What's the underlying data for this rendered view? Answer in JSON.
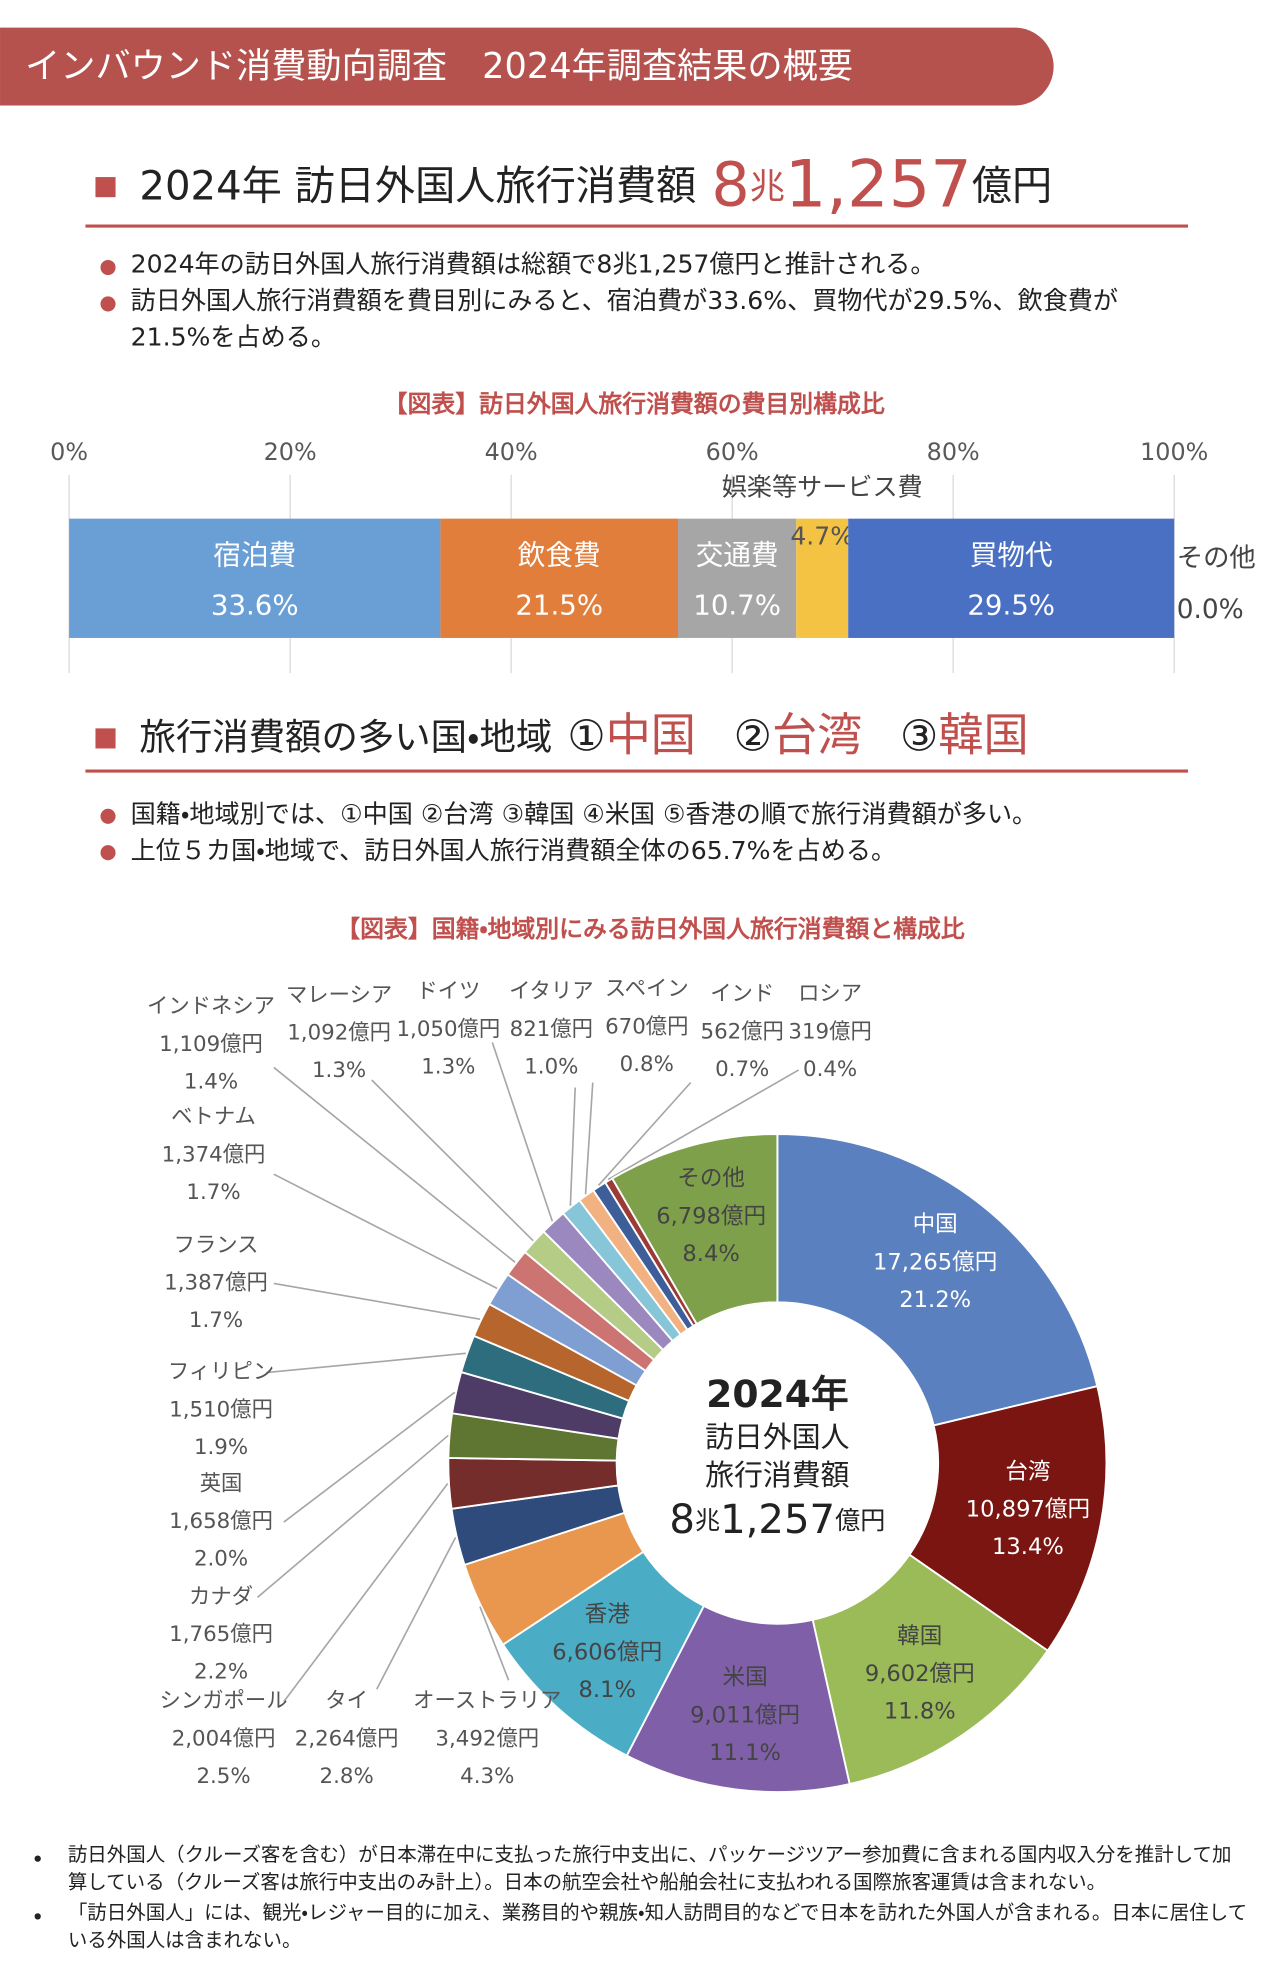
{
  "header": {
    "title": "インバウンド消費動向調査　2024年調査結果の概要"
  },
  "section1": {
    "heading": {
      "text": "2024年 訪日外国人旅行消費額",
      "amount1": "8",
      "unit1": "兆",
      "amount2": "1,257",
      "unit2": "億円"
    },
    "bullets": [
      "2024年の訪日外国人旅行消費額は総額で8兆1,257億円と推計される。",
      "訪日外国人旅行消費額を費目別にみると、宿泊費が33.6%、買物代が29.5%、飲食費が21.5%を占める。"
    ]
  },
  "section2": {
    "heading": {
      "text": "旅行消費額の多い国・地域",
      "ranks": [
        {
          "mark": "①",
          "name": "中国"
        },
        {
          "mark": "②",
          "name": "台湾"
        },
        {
          "mark": "③",
          "name": "韓国"
        }
      ]
    },
    "bullets": [
      "国籍・地域別では、①中国 ②台湾 ③韓国 ④米国 ⑤香港の順で旅行消費額が多い。",
      "上位５カ国・地域で、訪日外国人旅行消費額全体の65.7%を占める。"
    ]
  },
  "chart_data": [
    {
      "type": "bar",
      "orientation": "horizontal",
      "stacked": true,
      "title": "【図表】訪日外国人旅行消費額の費目別構成比",
      "xlim": [
        0,
        100
      ],
      "xticks": [
        {
          "value": 0,
          "label": "0%"
        },
        {
          "value": 20,
          "label": "20%"
        },
        {
          "value": 40,
          "label": "40%"
        },
        {
          "value": 60,
          "label": "60%"
        },
        {
          "value": 80,
          "label": "80%"
        },
        {
          "value": 100,
          "label": "100%"
        }
      ],
      "grid": true,
      "series": [
        {
          "name": "宿泊費",
          "color": "#6a9fd6",
          "values": [
            33.6
          ],
          "value_labels": [
            "33.6%"
          ]
        },
        {
          "name": "飲食費",
          "color": "#e27e3c",
          "values": [
            21.5
          ],
          "value_labels": [
            "21.5%"
          ]
        },
        {
          "name": "交通費",
          "color": "#a6a6a6",
          "values": [
            10.7
          ],
          "value_labels": [
            "10.7%"
          ]
        },
        {
          "name": "娯楽等サービス費",
          "color": "#f5c343",
          "values": [
            4.7
          ],
          "value_labels": [
            "4.7%"
          ]
        },
        {
          "name": "買物代",
          "color": "#4a70c4",
          "values": [
            29.5
          ],
          "value_labels": [
            "29.5%"
          ]
        },
        {
          "name": "その他",
          "color": "#7ea04a",
          "values": [
            0.0
          ],
          "value_labels": [
            "0.0%"
          ]
        }
      ]
    },
    {
      "type": "pie",
      "donut": true,
      "title": "【図表】国籍・地域別にみる訪日外国人旅行消費額と構成比",
      "center": {
        "title": "2024年",
        "lines": [
          "訪日外国人",
          "旅行消費額"
        ],
        "amount1": "8",
        "unit1": "兆",
        "amount2": "1,257",
        "unit2": "億円"
      },
      "categories": [
        "中国",
        "台湾",
        "韓国",
        "米国",
        "香港",
        "オーストラリア",
        "タイ",
        "シンガポール",
        "カナダ",
        "英国",
        "フィリピン",
        "フランス",
        "ベトナム",
        "インドネシア",
        "マレーシア",
        "ドイツ",
        "イタリア",
        "スペイン",
        "インド",
        "ロシア",
        "その他"
      ],
      "values": [
        17265,
        10897,
        9602,
        9011,
        6606,
        3492,
        2264,
        2004,
        1765,
        1658,
        1510,
        1387,
        1374,
        1109,
        1092,
        1050,
        821,
        670,
        562,
        319,
        6798
      ],
      "value_labels": [
        "17,265億円",
        "10,897億円",
        "9,602億円",
        "9,011億円",
        "6,606億円",
        "3,492億円",
        "2,264億円",
        "2,004億円",
        "1,765億円",
        "1,658億円",
        "1,510億円",
        "1,387億円",
        "1,374億円",
        "1,109億円",
        "1,092億円",
        "1,050億円",
        "821億円",
        "670億円",
        "562億円",
        "319億円",
        "6,798億円"
      ],
      "percents": [
        21.2,
        13.4,
        11.8,
        11.1,
        8.1,
        4.3,
        2.8,
        2.5,
        2.2,
        2.0,
        1.9,
        1.7,
        1.7,
        1.4,
        1.3,
        1.3,
        1.0,
        0.8,
        0.7,
        0.4,
        8.4
      ],
      "percent_labels": [
        "21.2%",
        "13.4%",
        "11.8%",
        "11.1%",
        "8.1%",
        "4.3%",
        "2.8%",
        "2.5%",
        "2.2%",
        "2.0%",
        "1.9%",
        "1.7%",
        "1.7%",
        "1.4%",
        "1.3%",
        "1.3%",
        "1.0%",
        "0.8%",
        "0.7%",
        "0.4%",
        "8.4%"
      ],
      "colors": [
        "#5b80bf",
        "#7b1511",
        "#9bbb59",
        "#7e5fa8",
        "#4bacc6",
        "#e9974f",
        "#2f4b7b",
        "#742d2a",
        "#5f7633",
        "#4e3c67",
        "#2d6d7d",
        "#b6662c",
        "#7f9ed1",
        "#cc7471",
        "#b5cc87",
        "#9a88bf",
        "#87c5d9",
        "#f1b180",
        "#3e5e9a",
        "#9b3b37",
        "#7ea04a"
      ]
    }
  ],
  "notes": [
    "訪日外国人（クルーズ客を含む）が日本滞在中に支払った旅行中支出に、パッケージツアー参加費に含まれる国内収入分を推計して加算している（クルーズ客は旅行中支出のみ計上）。日本の航空会社や船舶会社に支払われる国際旅客運賃は含まれない。",
    "「訪日外国人」には、観光・レジャー目的に加え、業務目的や親族・知人訪問目的などで日本を訪れた外国人が含まれる。日本に居住している外国人は含まれない。"
  ]
}
